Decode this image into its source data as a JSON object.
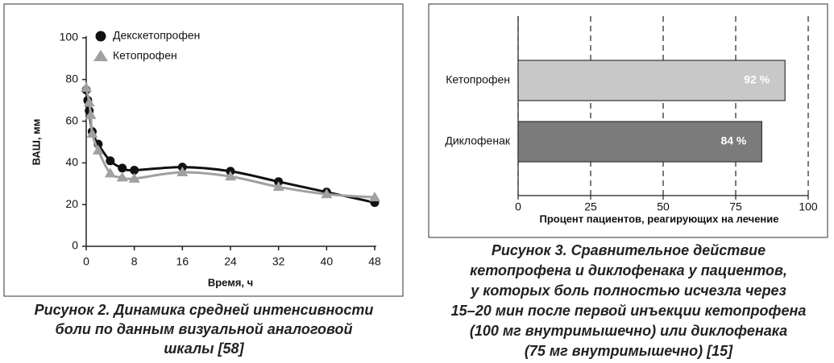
{
  "chart_data": [
    {
      "type": "line",
      "xlabel": "Время, ч",
      "ylabel": "ВАШ, мм",
      "xlim": [
        0,
        48
      ],
      "xticks": [
        0,
        8,
        16,
        24,
        32,
        40,
        48
      ],
      "ylim": [
        0,
        100
      ],
      "yticks": [
        0,
        20,
        40,
        60,
        80,
        100
      ],
      "legend": "upper left",
      "series": [
        {
          "name": "Декскетопрофен",
          "color": "#111111",
          "line_color": "#111111",
          "marker": "circle",
          "x": [
            0,
            0.25,
            0.5,
            1,
            2,
            4,
            6,
            8,
            16,
            24,
            32,
            40,
            48
          ],
          "values": [
            75,
            70,
            65,
            55,
            49,
            41,
            37.5,
            36.5,
            38,
            36,
            31,
            26,
            21
          ]
        },
        {
          "name": "Кетопрофен",
          "color": "#a0a0a0",
          "line_color": "#a0a0a0",
          "marker": "triangle",
          "x": [
            0,
            0.5,
            0.75,
            1,
            2,
            4,
            6,
            8,
            16,
            24,
            32,
            40,
            48
          ],
          "values": [
            76,
            69,
            63,
            54,
            46,
            35,
            33,
            32.5,
            35.5,
            33.5,
            28.5,
            25,
            23.5
          ]
        }
      ],
      "caption": [
        "Рисунок 2. Динамика средней интенсивности",
        "боли по данным визуальной аналоговой",
        "шкалы [58]"
      ]
    },
    {
      "type": "bar",
      "orientation": "horizontal",
      "categories": [
        "Кетопрофен",
        "Диклофенак"
      ],
      "values": [
        92,
        84
      ],
      "value_labels": [
        "92 %",
        "84 %"
      ],
      "colors": [
        "#c8c8c8",
        "#7b7b7b"
      ],
      "xlim": [
        0,
        100
      ],
      "xticks": [
        0,
        25,
        50,
        75,
        100
      ],
      "grid": true,
      "xlabel": "Процент пациентов, реагирующих на лечение",
      "caption": [
        "Рисунок 3. Сравнительное действие",
        "кетопрофена и диклофенака у пациентов,",
        "у которых боль полностью исчезла через",
        "15–20 мин после первой инъекции кетопрофена",
        "(100 мг внутримышечно) или диклофенака",
        "(75 мг внутримышечно) [15]"
      ]
    }
  ]
}
